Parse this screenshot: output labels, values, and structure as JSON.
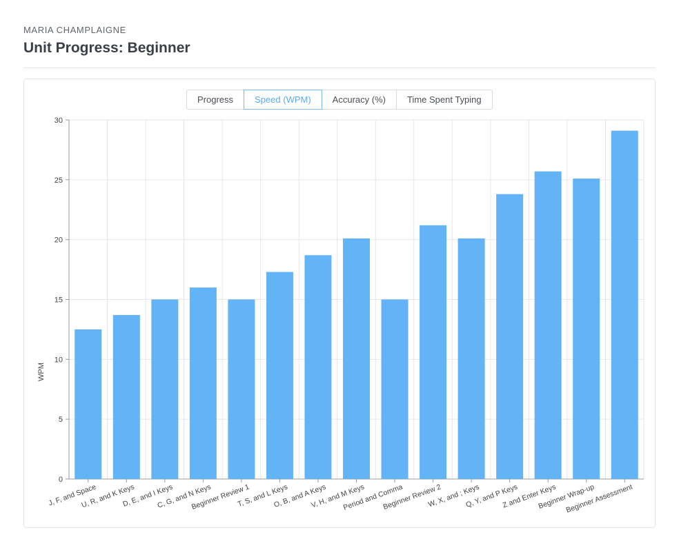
{
  "header": {
    "user_name": "MARIA CHAMPLAIGNE",
    "title": "Unit Progress: Beginner"
  },
  "tabs": [
    {
      "label": "Progress",
      "active": false
    },
    {
      "label": "Speed (WPM)",
      "active": true
    },
    {
      "label": "Accuracy (%)",
      "active": false
    },
    {
      "label": "Time Spent Typing",
      "active": false
    }
  ],
  "colors": {
    "bar": "#63b3f7",
    "accent": "#5aaaf0",
    "grid": "#e6e6e6"
  },
  "chart_data": {
    "type": "bar",
    "title": "",
    "xlabel": "",
    "ylabel": "WPM",
    "ylim": [
      0,
      30
    ],
    "yticks": [
      0,
      5,
      10,
      15,
      20,
      25,
      30
    ],
    "grid": true,
    "categories": [
      "J, F, and Space",
      "U, R, and K Keys",
      "D, E, and I Keys",
      "C, G, and N Keys",
      "Beginner Review 1",
      "T, S, and L Keys",
      "O, B, and A Keys",
      "V, H, and M Keys",
      "Period and Comma",
      "Beginner Review 2",
      "W, X, and ; Keys",
      "Q, Y, and P Keys",
      "Z and Enter Keys",
      "Beginner Wrap-up",
      "Beginner Assessment"
    ],
    "values": [
      12.5,
      13.7,
      15,
      16,
      15,
      17.3,
      18.7,
      20.1,
      15,
      21.2,
      20.1,
      23.8,
      25.7,
      25.1,
      29.1
    ]
  }
}
